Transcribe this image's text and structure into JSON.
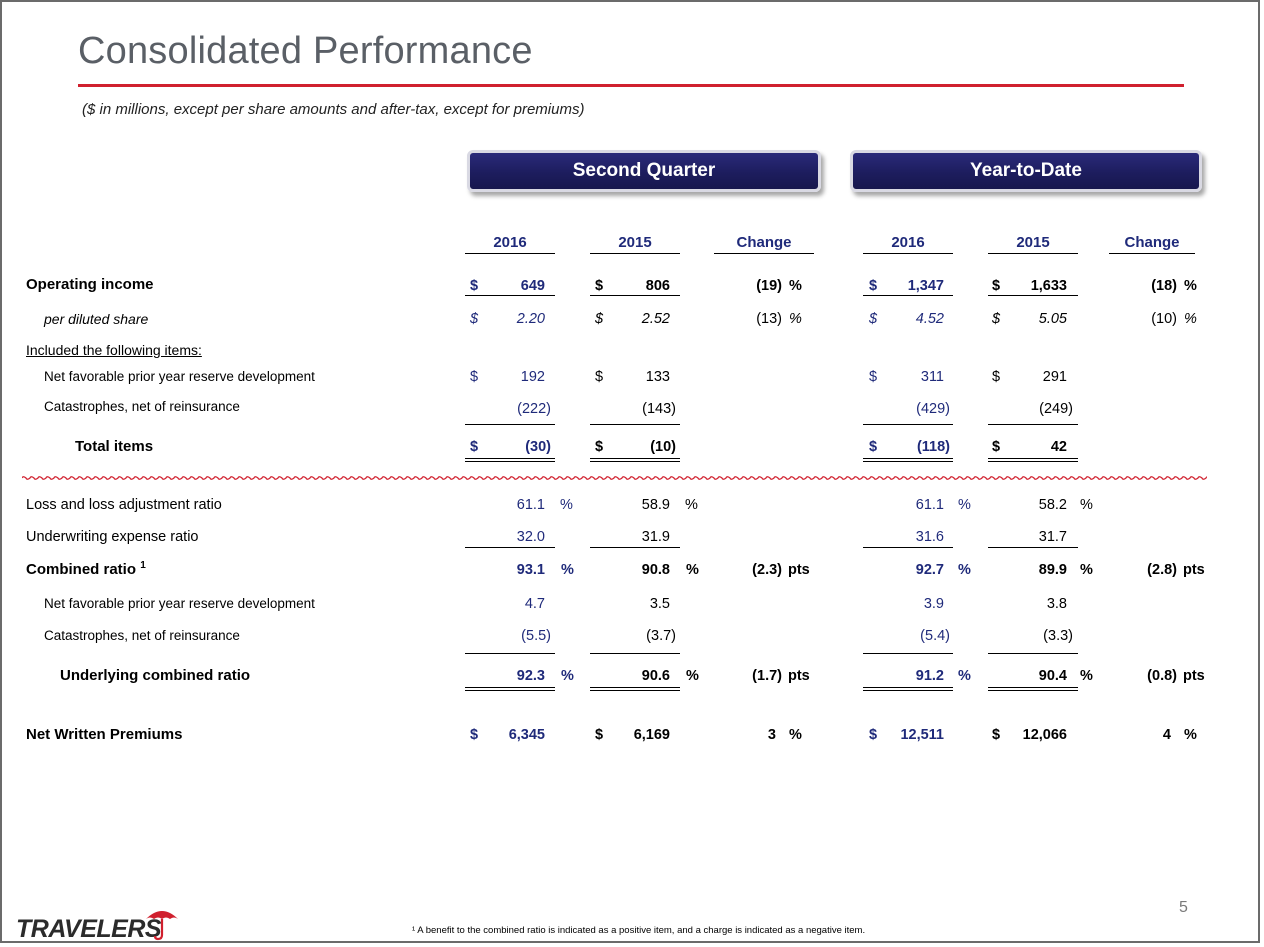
{
  "title": "Consolidated Performance",
  "subtitle": "($ in millions, except per share amounts and after-tax, except for premiums)",
  "periods": {
    "q2": "Second Quarter",
    "ytd": "Year-to-Date"
  },
  "columns": [
    "2016",
    "2015",
    "Change",
    "2016",
    "2015",
    "Change"
  ],
  "rows": {
    "operating_income": {
      "label": "Operating income",
      "cur": "$",
      "v": [
        "649",
        "806",
        "(19)",
        "1,347",
        "1,633",
        "(18)"
      ],
      "chg_unit": "%"
    },
    "per_share": {
      "label": "per diluted share",
      "cur": "$",
      "v": [
        "2.20",
        "2.52",
        "(13)",
        "4.52",
        "5.05",
        "(10)"
      ],
      "chg_unit": "%"
    },
    "included_label": "Included the following items:",
    "pyd": {
      "label": "Net favorable prior year reserve development",
      "cur": "$",
      "v": [
        "192",
        "133",
        "311",
        "291"
      ]
    },
    "cat": {
      "label": "Catastrophes, net of reinsurance",
      "v": [
        "(222)",
        "(143)",
        "(429)",
        "(249)"
      ]
    },
    "total": {
      "label": "Total items",
      "cur": "$",
      "v": [
        "(30)",
        "(10)",
        "(118)",
        "42"
      ]
    },
    "loss_ratio": {
      "label": "Loss and loss adjustment ratio",
      "v": [
        "61.1",
        "58.9",
        "61.1",
        "58.2"
      ],
      "unit": "%"
    },
    "expense_ratio": {
      "label": "Underwriting expense ratio",
      "v": [
        "32.0",
        "31.9",
        "31.6",
        "31.7"
      ]
    },
    "combined": {
      "label": "Combined ratio",
      "sup": "1",
      "v": [
        "93.1",
        "90.8",
        "(2.3)",
        "92.7",
        "89.9",
        "(2.8)"
      ],
      "unit": "%",
      "chg_unit": "pts"
    },
    "c_pyd": {
      "label": "Net favorable prior year reserve development",
      "v": [
        "4.7",
        "3.5",
        "3.9",
        "3.8"
      ]
    },
    "c_cat": {
      "label": "Catastrophes, net of reinsurance",
      "v": [
        "(5.5)",
        "(3.7)",
        "(5.4)",
        "(3.3)"
      ]
    },
    "underlying": {
      "label": "Underlying combined ratio",
      "v": [
        "92.3",
        "90.6",
        "(1.7)",
        "91.2",
        "90.4",
        "(0.8)"
      ],
      "unit": "%",
      "chg_unit": "pts"
    },
    "nwp": {
      "label": "Net Written Premiums",
      "cur": "$",
      "v": [
        "6,345",
        "6,169",
        "3",
        "12,511",
        "12,066",
        "4"
      ],
      "chg_unit": "%"
    }
  },
  "footnote": "¹ A benefit to the combined ratio is indicated as a positive item, and a charge is indicated as a negative item.",
  "page_number": "5",
  "logo_text": "TRAVELERS",
  "colors": {
    "accent_red": "#d0202e",
    "navy": "#1f2a7a",
    "button": "#1d1d5e"
  }
}
